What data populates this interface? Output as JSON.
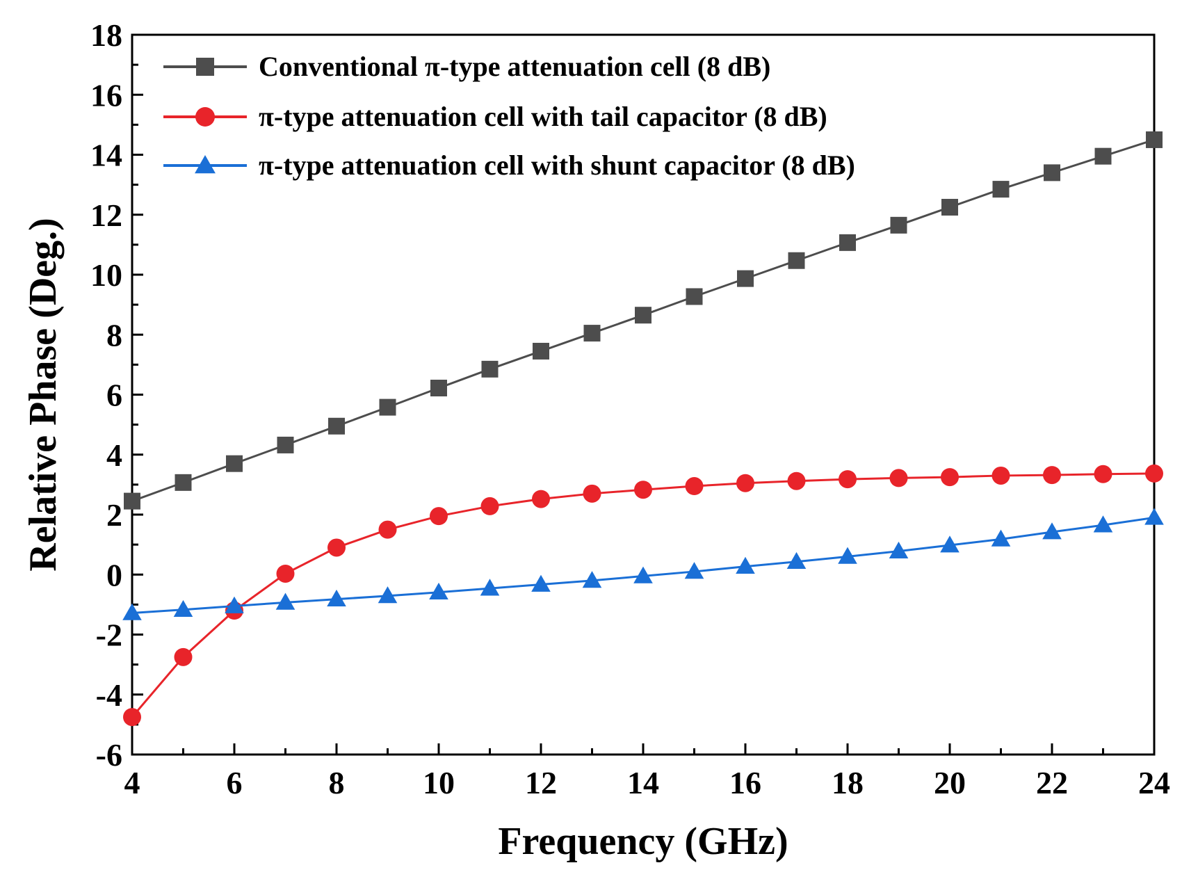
{
  "chart_data": {
    "type": "line",
    "title": "",
    "xlabel": "Frequency (GHz)",
    "ylabel": "Relative Phase (Deg.)",
    "xlim": [
      4,
      24
    ],
    "ylim": [
      -6,
      18
    ],
    "xticks": [
      4,
      6,
      8,
      10,
      12,
      14,
      16,
      18,
      20,
      22,
      24
    ],
    "yticks": [
      -6,
      -4,
      -2,
      0,
      2,
      4,
      6,
      8,
      10,
      12,
      14,
      16,
      18
    ],
    "xtick_labels": [
      "4",
      "6",
      "8",
      "10",
      "12",
      "14",
      "16",
      "18",
      "20",
      "22",
      "24"
    ],
    "ytick_labels": [
      "-6",
      "-4",
      "-2",
      "0",
      "2",
      "4",
      "6",
      "8",
      "10",
      "12",
      "14",
      "16",
      "18"
    ],
    "grid": false,
    "legend_position": "top-left",
    "x": [
      4,
      5,
      6,
      7,
      8,
      9,
      10,
      11,
      12,
      13,
      14,
      15,
      16,
      17,
      18,
      19,
      20,
      21,
      22,
      23,
      24
    ],
    "series": [
      {
        "name": "Conventional π-type  attenuation cell (8 dB)",
        "color": "#4d4d4d",
        "marker": "square",
        "values": [
          2.45,
          3.07,
          3.7,
          4.32,
          4.95,
          5.58,
          6.22,
          6.85,
          7.45,
          8.05,
          8.65,
          9.27,
          9.87,
          10.47,
          11.07,
          11.65,
          12.25,
          12.85,
          13.4,
          13.95,
          14.5
        ]
      },
      {
        "name": "π-type attenuation cell with tail capacitor (8 dB)",
        "color": "#e8242a",
        "marker": "circle",
        "values": [
          -4.75,
          -2.75,
          -1.2,
          0.03,
          0.9,
          1.5,
          1.95,
          2.28,
          2.52,
          2.7,
          2.83,
          2.95,
          3.05,
          3.12,
          3.18,
          3.22,
          3.25,
          3.3,
          3.32,
          3.35,
          3.37
        ]
      },
      {
        "name": "π-type attenuation cell with shunt capacitor (8 dB)",
        "color": "#1a6fd6",
        "marker": "triangle",
        "values": [
          -1.28,
          -1.17,
          -1.05,
          -0.93,
          -0.82,
          -0.71,
          -0.59,
          -0.46,
          -0.33,
          -0.2,
          -0.05,
          0.1,
          0.27,
          0.43,
          0.6,
          0.78,
          0.98,
          1.18,
          1.42,
          1.65,
          1.9
        ]
      }
    ]
  }
}
